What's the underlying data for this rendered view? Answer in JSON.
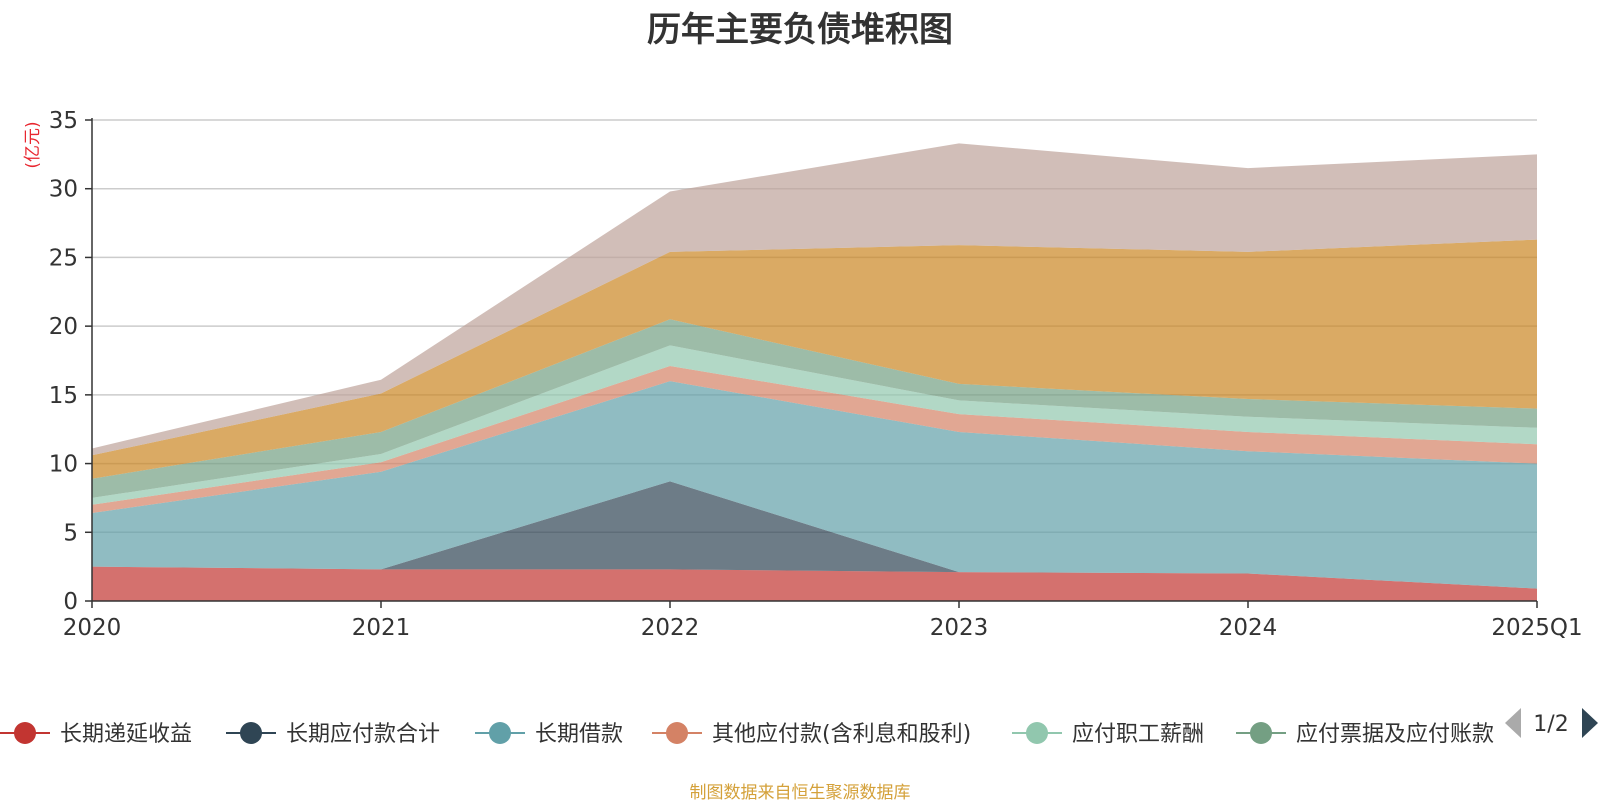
{
  "chart_data": {
    "type": "area",
    "stacked": true,
    "title": "历年主要负债堆积图",
    "ylabel": "(亿元)",
    "categories": [
      "2020",
      "2021",
      "2022",
      "2023",
      "2024",
      "2025Q1"
    ],
    "ylim": [
      0,
      35
    ],
    "yticks": [
      0,
      5,
      10,
      15,
      20,
      25,
      30,
      35
    ],
    "grid": true,
    "legend_position": "bottom",
    "series": [
      {
        "name": "长期递延收益",
        "color": "#c23531",
        "values": [
          2.5,
          2.3,
          2.3,
          2.1,
          2.0,
          0.9
        ]
      },
      {
        "name": "长期应付款合计",
        "color": "#2f4554",
        "values": [
          0.0,
          0.0,
          6.4,
          0.0,
          0.0,
          0.0
        ]
      },
      {
        "name": "长期借款",
        "color": "#61a0a8",
        "values": [
          3.9,
          7.1,
          7.3,
          10.2,
          8.9,
          9.1
        ]
      },
      {
        "name": "其他应付款(含利息和股利)",
        "color": "#d48265",
        "values": [
          0.6,
          0.7,
          1.1,
          1.3,
          1.4,
          1.4
        ]
      },
      {
        "name": "应付职工薪酬",
        "color": "#91c7ae",
        "values": [
          0.5,
          0.6,
          1.5,
          1.0,
          1.1,
          1.2
        ]
      },
      {
        "name": "应付票据及应付账款",
        "color": "#749f83",
        "values": [
          1.4,
          1.6,
          1.9,
          1.2,
          1.3,
          1.4
        ]
      },
      {
        "name": "",
        "color": "#ca8622",
        "values": [
          1.7,
          2.8,
          4.9,
          10.1,
          10.7,
          12.3
        ]
      },
      {
        "name": "",
        "color": "#bda29a",
        "values": [
          0.5,
          1.0,
          4.4,
          7.4,
          6.1,
          6.2
        ]
      }
    ]
  },
  "legend": {
    "page_indicator": "1/2",
    "prev_icon": "triangle-left-icon",
    "next_icon": "triangle-right-icon"
  },
  "footer": {
    "source_text": "制图数据来自恒生聚源数据库"
  }
}
